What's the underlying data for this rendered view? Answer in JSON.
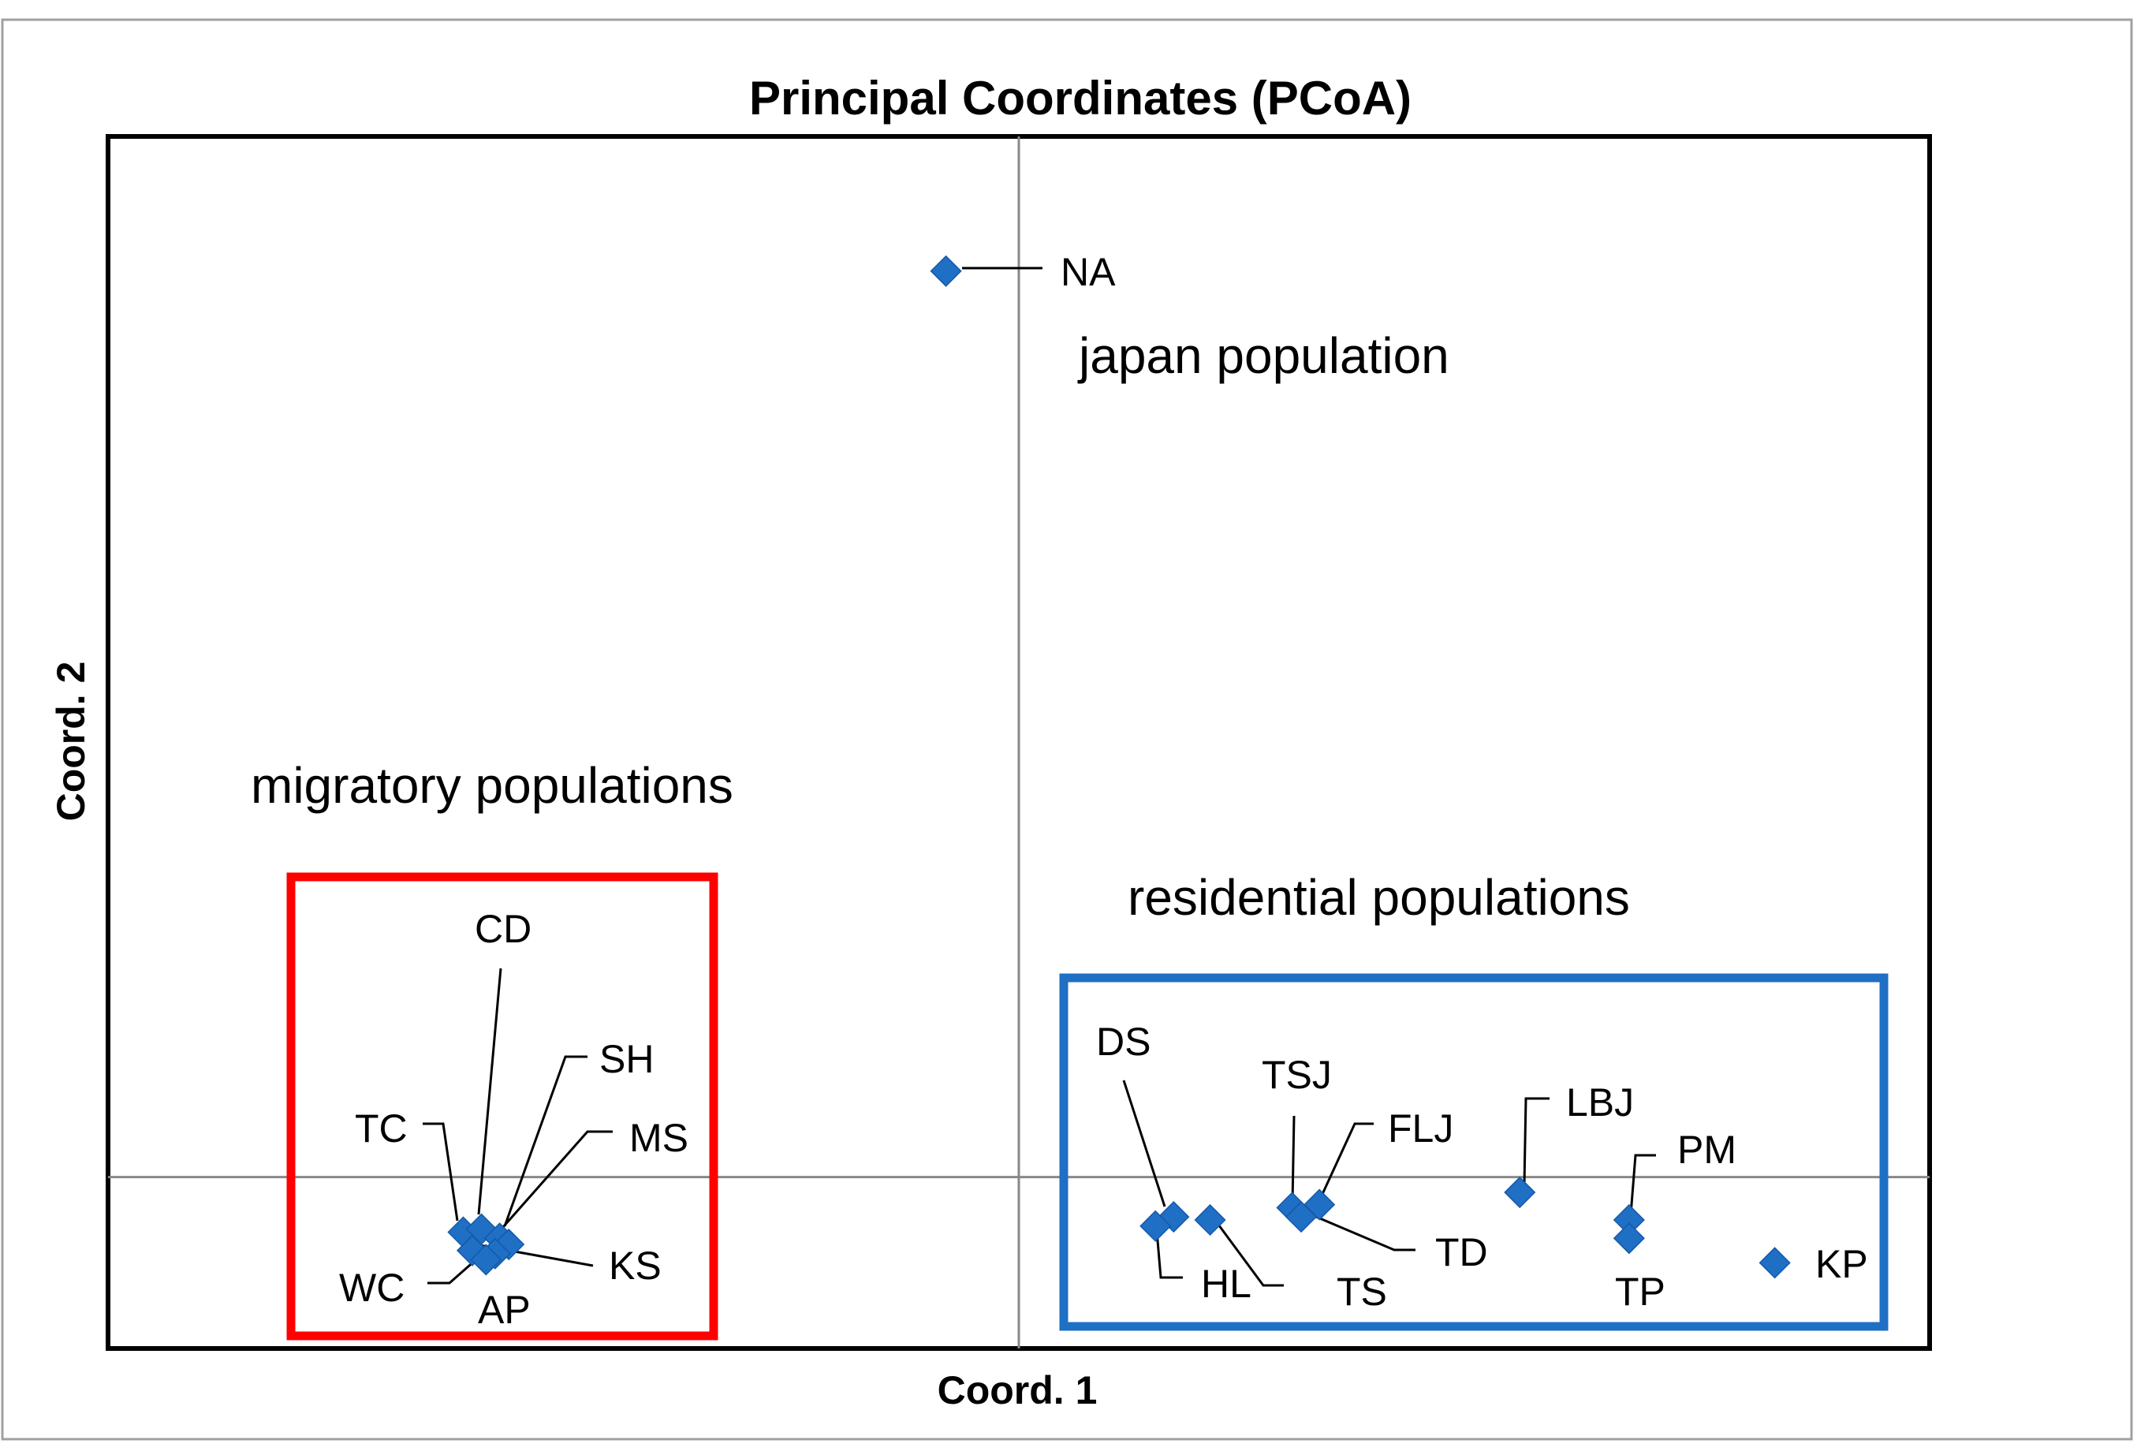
{
  "chart_data": {
    "type": "scatter",
    "title": "Principal Coordinates (PCoA)",
    "xlabel": "Coord. 1",
    "ylabel": "Coord. 2",
    "xlim": [
      -1.0,
      1.0
    ],
    "ylim": [
      -0.28,
      1.7
    ],
    "grid": false,
    "marker": "diamond",
    "marker_color": "#1f6fc5",
    "points": [
      {
        "label": "NA",
        "x": -0.08,
        "y": 1.48
      },
      {
        "label": "TC",
        "x": -0.61,
        "y": -0.09
      },
      {
        "label": "CD",
        "x": -0.59,
        "y": -0.085
      },
      {
        "label": "SH",
        "x": -0.57,
        "y": -0.1
      },
      {
        "label": "MS",
        "x": -0.56,
        "y": -0.11
      },
      {
        "label": "WC",
        "x": -0.6,
        "y": -0.12
      },
      {
        "label": "KS",
        "x": -0.575,
        "y": -0.125
      },
      {
        "label": "AP",
        "x": -0.585,
        "y": -0.135
      },
      {
        "label": "DS",
        "x": 0.17,
        "y": -0.065
      },
      {
        "label": "HL",
        "x": 0.15,
        "y": -0.08
      },
      {
        "label": "TS",
        "x": 0.21,
        "y": -0.07
      },
      {
        "label": "TSJ",
        "x": 0.3,
        "y": -0.05
      },
      {
        "label": "FLJ",
        "x": 0.33,
        "y": -0.045
      },
      {
        "label": "TD",
        "x": 0.31,
        "y": -0.065
      },
      {
        "label": "LBJ",
        "x": 0.55,
        "y": -0.025
      },
      {
        "label": "PM",
        "x": 0.67,
        "y": -0.07
      },
      {
        "label": "TP",
        "x": 0.67,
        "y": -0.1
      },
      {
        "label": "KP",
        "x": 0.83,
        "y": -0.14
      }
    ],
    "groups": [
      {
        "label": "japan population",
        "color": null
      },
      {
        "label": "migratory populations",
        "color": "#ff0000"
      },
      {
        "label": "residential populations",
        "color": "#1f6fc5"
      }
    ]
  }
}
